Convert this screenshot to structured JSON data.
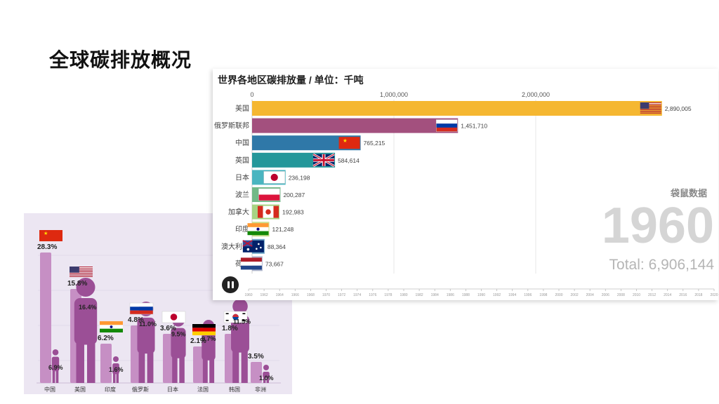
{
  "slide": {
    "title": "全球碳排放概况"
  },
  "infographic": {
    "x_labels": [
      "中国",
      "美国",
      "印度",
      "俄罗斯",
      "日本",
      "法国",
      "韩国",
      "非洲"
    ],
    "countries": [
      {
        "name": "中国",
        "flag": "china-flag",
        "total_share": "28.3%",
        "per_capita": "6.9%"
      },
      {
        "name": "美国",
        "flag": "usa-flag",
        "total_share": "15.8%",
        "per_capita": "16.4%"
      },
      {
        "name": "印度",
        "flag": "india-flag",
        "total_share": "6.2%",
        "per_capita": "1.6%"
      },
      {
        "name": "俄罗斯",
        "flag": "russia-flag",
        "total_share": "4.8%",
        "per_capita": "11.0%"
      },
      {
        "name": "日本",
        "flag": "japan-flag",
        "total_share": "3.6%",
        "per_capita": "9.5%"
      },
      {
        "name": "法国",
        "flag": "germany-flag",
        "total_share": "2.1%",
        "per_capita": "8.7%"
      },
      {
        "name": "韩国",
        "flag": "korea-flag",
        "total_share": "1.8%",
        "per_capita": "11.5%"
      },
      {
        "name": "非洲",
        "flag": "",
        "total_share": "3.5%",
        "per_capita": "1.0%"
      }
    ],
    "colors": {
      "background": "#ece6f2",
      "bar": "#c68fc4",
      "figure": "#9b4f96"
    }
  },
  "chart_data": {
    "type": "bar",
    "orientation": "horizontal",
    "title": "世界各地区碳排放量 / 单位：千吨",
    "categories": [
      "美国",
      "俄罗斯联邦",
      "中国",
      "英国",
      "日本",
      "波兰",
      "加拿大",
      "印度",
      "澳大利亚",
      "荷兰"
    ],
    "values": [
      2890005,
      1451710,
      765215,
      584614,
      236198,
      200287,
      192983,
      121248,
      88364,
      73667
    ],
    "value_labels": [
      "2,890,005",
      "1,451,710",
      "765,215",
      "584,614",
      "236,198",
      "200,287",
      "192,983",
      "121,248",
      "88,364",
      "73,667"
    ],
    "flags": [
      "usa-flag",
      "russia-flag",
      "china-flag",
      "uk-flag",
      "japan-flag",
      "poland-flag",
      "canada-flag",
      "india-flag",
      "australia-flag",
      "netherlands-flag"
    ],
    "colors": [
      "#f5b731",
      "#a3507e",
      "#2f78a8",
      "#24979a",
      "#4ab5c0",
      "#72b987",
      "#a7d383",
      "#ccdf8d",
      "#6aa3c5",
      "#b0b6cc"
    ],
    "xaxis_ticks": [
      0,
      1000000,
      2000000
    ],
    "xaxis_tick_labels": [
      "0",
      "1,000,000",
      "2,000,000"
    ],
    "xlim": [
      0,
      3100000
    ],
    "timeline_years": [
      "1960",
      "1962",
      "1964",
      "1966",
      "1968",
      "1970",
      "1972",
      "1974",
      "1976",
      "1978",
      "1980",
      "1982",
      "1984",
      "1986",
      "1988",
      "1990",
      "1992",
      "1994",
      "1996",
      "1998",
      "2000",
      "2002",
      "2004",
      "2006",
      "2008",
      "2010",
      "2012",
      "2014",
      "2016",
      "2018",
      "2020"
    ],
    "year": "1960",
    "total_label": "Total: 6,906,144",
    "source": "袋鼠数据",
    "grid": true
  }
}
